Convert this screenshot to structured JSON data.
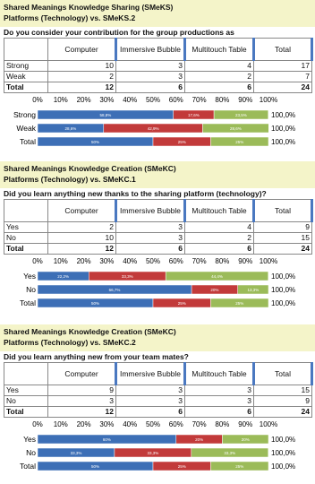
{
  "sections": [
    {
      "title": "Shared Meanings Knowledge Sharing (SMeKS)",
      "subtitle": "Platforms (Technology) vs.  SMeKS.2",
      "question": "Do you consider your contribution for the group productions as",
      "table": {
        "header": [
          "Computer",
          "Immersive Bubble",
          "Multitouch Table",
          "Total"
        ],
        "rows": [
          [
            "Strong",
            10,
            3,
            4,
            17
          ],
          [
            "Weak",
            2,
            3,
            2,
            7
          ],
          [
            "Total",
            12,
            6,
            6,
            24
          ]
        ]
      },
      "chart": {
        "xlim": [
          0,
          100
        ],
        "xticks": [
          {
            "value": 0,
            "label": "0%"
          },
          {
            "value": 10,
            "label": "10%"
          },
          {
            "value": 20,
            "label": "20%"
          },
          {
            "value": 30,
            "label": "30%"
          },
          {
            "value": 40,
            "label": "40%"
          },
          {
            "value": 50,
            "label": "50%"
          },
          {
            "value": 60,
            "label": "60%"
          },
          {
            "value": 70,
            "label": "70%"
          },
          {
            "value": 80,
            "label": "80%"
          },
          {
            "value": 90,
            "label": "90%"
          },
          {
            "value": 100,
            "label": "100%"
          }
        ],
        "colors": [
          "#3d6fb6",
          "#c23a3a",
          "#9bbb59"
        ],
        "rows": [
          {
            "label": "Strong",
            "values": [
              58.8,
              17.6,
              23.5
            ],
            "value_labels": [
              "58,8%",
              "17,6%",
              "23,5%"
            ],
            "total_label": "100,0%"
          },
          {
            "label": "Weak",
            "values": [
              28.6,
              42.9,
              28.6
            ],
            "value_labels": [
              "28,6%",
              "42,9%",
              "28,6%"
            ],
            "total_label": "100,0%"
          },
          {
            "label": "Total",
            "values": [
              50,
              25,
              25
            ],
            "value_labels": [
              "50%",
              "25%",
              "25%"
            ],
            "total_label": "100,0%"
          }
        ]
      }
    },
    {
      "title": "Shared Meanings Knowledge Creation (SMeKC)",
      "subtitle": "Platforms (Technology) vs. SMeKC.1",
      "question": "Did you learn anything new thanks to the sharing platform (technology)?",
      "table": {
        "header": [
          "Computer",
          "Immersive Bubble",
          "Multitouch Table",
          "Total"
        ],
        "rows": [
          [
            "Yes",
            2,
            3,
            4,
            9
          ],
          [
            "No",
            10,
            3,
            2,
            15
          ],
          [
            "Total",
            12,
            6,
            6,
            24
          ]
        ]
      },
      "chart": {
        "xlim": [
          0,
          100
        ],
        "xticks": [
          {
            "value": 0,
            "label": "0%"
          },
          {
            "value": 10,
            "label": "10%"
          },
          {
            "value": 20,
            "label": "20%"
          },
          {
            "value": 30,
            "label": "30%"
          },
          {
            "value": 40,
            "label": "40%"
          },
          {
            "value": 50,
            "label": "50%"
          },
          {
            "value": 60,
            "label": "60%"
          },
          {
            "value": 70,
            "label": "70%"
          },
          {
            "value": 80,
            "label": "80%"
          },
          {
            "value": 90,
            "label": "90%"
          },
          {
            "value": 100,
            "label": "100%"
          }
        ],
        "colors": [
          "#3d6fb6",
          "#c23a3a",
          "#9bbb59"
        ],
        "rows": [
          {
            "label": "Yes",
            "values": [
              22.2,
              33.3,
              44.4
            ],
            "value_labels": [
              "22,2%",
              "33,3%",
              "44,4%"
            ],
            "total_label": "100,0%"
          },
          {
            "label": "No",
            "values": [
              66.7,
              20,
              13.3
            ],
            "value_labels": [
              "66,7%",
              "20%",
              "13,3%"
            ],
            "total_label": "100,0%"
          },
          {
            "label": "Total",
            "values": [
              50,
              25,
              25
            ],
            "value_labels": [
              "50%",
              "25%",
              "25%"
            ],
            "total_label": "100,0%"
          }
        ]
      }
    },
    {
      "title": "Shared Meanings Knowledge Creation (SMeKC)",
      "subtitle": "Platforms (Technology) vs. SMeKC.2",
      "question": "Did you learn anything new from your team mates?",
      "table": {
        "header": [
          "Computer",
          "Immersive Bubble",
          "Multitouch Table",
          "Total"
        ],
        "rows": [
          [
            "Yes",
            9,
            3,
            3,
            15
          ],
          [
            "No",
            3,
            3,
            3,
            9
          ],
          [
            "Total",
            12,
            6,
            6,
            24
          ]
        ]
      },
      "chart": {
        "xlim": [
          0,
          100
        ],
        "xticks": [
          {
            "value": 0,
            "label": "0%"
          },
          {
            "value": 10,
            "label": "10%"
          },
          {
            "value": 20,
            "label": "20%"
          },
          {
            "value": 30,
            "label": "30%"
          },
          {
            "value": 40,
            "label": "40%"
          },
          {
            "value": 50,
            "label": "50%"
          },
          {
            "value": 60,
            "label": "60%"
          },
          {
            "value": 70,
            "label": "70%"
          },
          {
            "value": 80,
            "label": "80%"
          },
          {
            "value": 90,
            "label": "90%"
          },
          {
            "value": 100,
            "label": "100%"
          }
        ],
        "colors": [
          "#3d6fb6",
          "#c23a3a",
          "#9bbb59"
        ],
        "rows": [
          {
            "label": "Yes",
            "values": [
              60,
              20,
              20
            ],
            "value_labels": [
              "60%",
              "20%",
              "20%"
            ],
            "total_label": "100,0%"
          },
          {
            "label": "No",
            "values": [
              33.3,
              33.3,
              33.3
            ],
            "value_labels": [
              "33,3%",
              "33,3%",
              "33,3%"
            ],
            "total_label": "100,0%"
          },
          {
            "label": "Total",
            "values": [
              50,
              25,
              25
            ],
            "value_labels": [
              "50%",
              "25%",
              "25%"
            ],
            "total_label": "100,0%"
          }
        ]
      }
    }
  ]
}
